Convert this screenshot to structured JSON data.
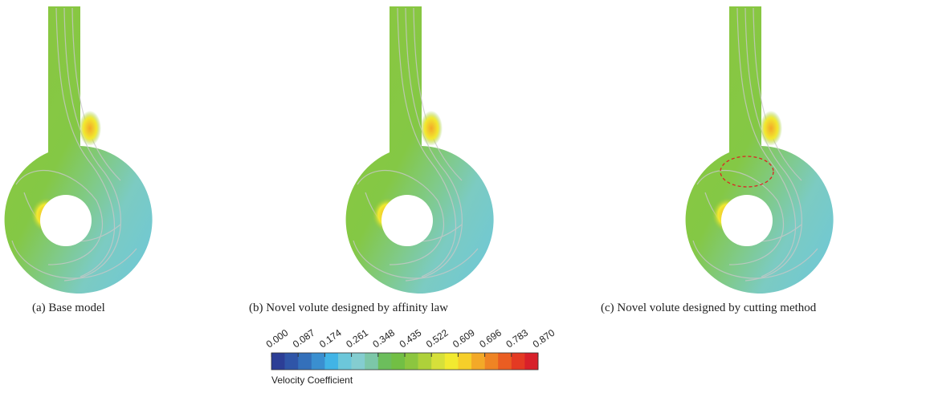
{
  "panels": [
    {
      "caption": "(a) Base model"
    },
    {
      "caption": "(b) Novel volute designed by affinity law"
    },
    {
      "caption": "(c) Novel volute designed by cutting method"
    }
  ],
  "colorbar": {
    "title": "Velocity Coefficient",
    "lim": [
      0,
      0.87
    ],
    "ticks": [
      {
        "value": 0,
        "label": "0.000"
      },
      {
        "value": 0.087,
        "label": "0.087"
      },
      {
        "value": 0.174,
        "label": "0.174"
      },
      {
        "value": 0.261,
        "label": "0.261"
      },
      {
        "value": 0.348,
        "label": "0.348"
      },
      {
        "value": 0.435,
        "label": "0.435"
      },
      {
        "value": 0.522,
        "label": "0.522"
      },
      {
        "value": 0.609,
        "label": "0.609"
      },
      {
        "value": 0.696,
        "label": "0.696"
      },
      {
        "value": 0.783,
        "label": "0.783"
      },
      {
        "value": 0.87,
        "label": "0.870"
      }
    ],
    "colors": [
      "#2c3e96",
      "#2f55a8",
      "#3470ba",
      "#3a8fd0",
      "#41b4e6",
      "#6cc7da",
      "#84cdd0",
      "#7cc7a8",
      "#6cbe5c",
      "#72bf44",
      "#8cc63f",
      "#aed13a",
      "#d6e03a",
      "#f2ea30",
      "#f6cf2a",
      "#f3a928",
      "#ef8424",
      "#ea5d22",
      "#e43a23",
      "#d8202a"
    ]
  }
}
